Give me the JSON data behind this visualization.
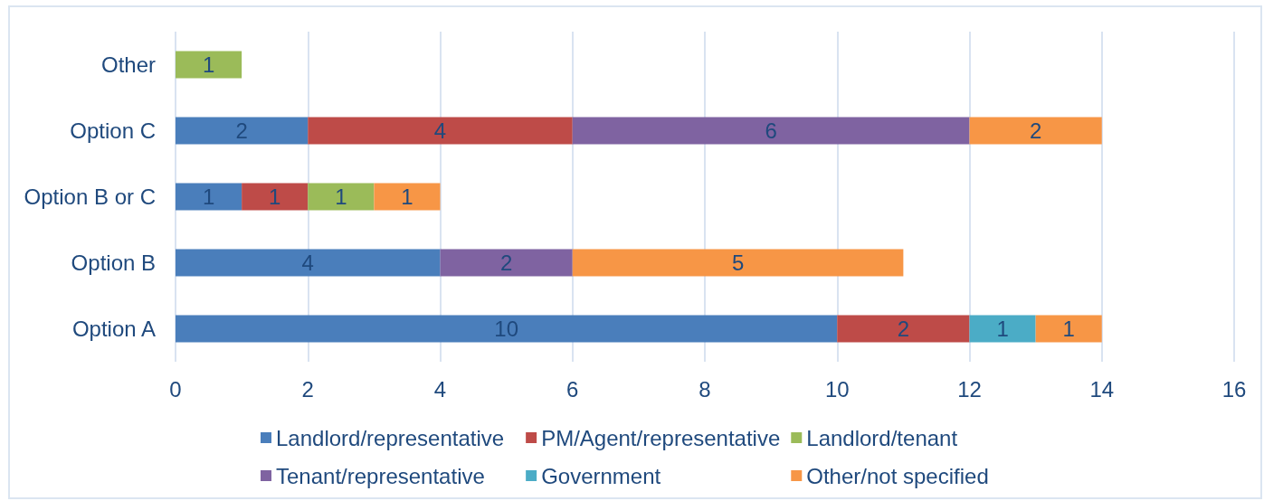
{
  "chart_data": {
    "type": "bar",
    "orientation": "horizontal",
    "stacked": true,
    "categories": [
      "Other",
      "Option C",
      "Option B or C",
      "Option B",
      "Option A"
    ],
    "series": [
      {
        "name": "Landlord/representative",
        "color": "#4a7ebb",
        "values": [
          null,
          2,
          1,
          4,
          10
        ]
      },
      {
        "name": "PM/Agent/representative",
        "color": "#be4b48",
        "values": [
          null,
          4,
          1,
          null,
          2
        ]
      },
      {
        "name": "Landlord/tenant",
        "color": "#9bbb59",
        "values": [
          1,
          null,
          1,
          null,
          null
        ]
      },
      {
        "name": "Tenant/representative",
        "color": "#7f63a1",
        "values": [
          null,
          6,
          null,
          2,
          null
        ]
      },
      {
        "name": "Government",
        "color": "#4bacc6",
        "values": [
          null,
          null,
          null,
          null,
          1
        ]
      },
      {
        "name": "Other/not specified",
        "color": "#f79646",
        "values": [
          null,
          2,
          1,
          5,
          1
        ]
      }
    ],
    "xlim": [
      0,
      16
    ],
    "xticks": [
      0,
      2,
      4,
      6,
      8,
      10,
      12,
      14,
      16
    ],
    "grid": "x",
    "legend": "bottom",
    "data_labels": true
  }
}
